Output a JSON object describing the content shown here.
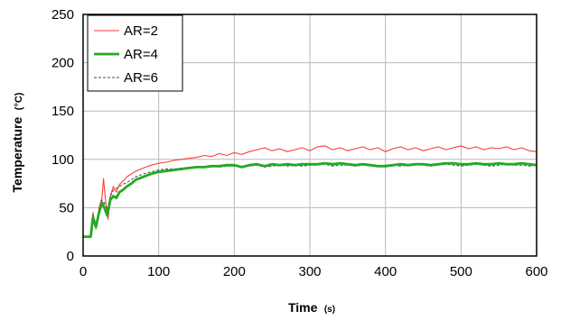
{
  "chart_data": {
    "type": "line",
    "xlabel": "Time",
    "xlabel_unit": "(s)",
    "ylabel": "Temperature",
    "ylabel_unit": "(°C)",
    "xlim": [
      0,
      600
    ],
    "ylim": [
      0,
      250
    ],
    "x_ticks": [
      0,
      100,
      200,
      300,
      400,
      500,
      600
    ],
    "y_ticks": [
      0,
      50,
      100,
      150,
      200,
      250
    ],
    "grid": true,
    "legend_position": "top-left",
    "series": [
      {
        "name": "AR=2",
        "color": "#ff3b3b",
        "style": "solid-thin",
        "points": [
          [
            0,
            20
          ],
          [
            10,
            20
          ],
          [
            13,
            45
          ],
          [
            17,
            28
          ],
          [
            21,
            50
          ],
          [
            25,
            60
          ],
          [
            27,
            80
          ],
          [
            30,
            55
          ],
          [
            33,
            38
          ],
          [
            36,
            62
          ],
          [
            40,
            72
          ],
          [
            44,
            66
          ],
          [
            48,
            74
          ],
          [
            52,
            77
          ],
          [
            58,
            82
          ],
          [
            64,
            85
          ],
          [
            70,
            88
          ],
          [
            80,
            91
          ],
          [
            90,
            94
          ],
          [
            100,
            96
          ],
          [
            110,
            97
          ],
          [
            120,
            99
          ],
          [
            130,
            100
          ],
          [
            140,
            101
          ],
          [
            150,
            102
          ],
          [
            160,
            104
          ],
          [
            170,
            103
          ],
          [
            180,
            106
          ],
          [
            190,
            104
          ],
          [
            200,
            107
          ],
          [
            210,
            105
          ],
          [
            220,
            108
          ],
          [
            230,
            110
          ],
          [
            240,
            112
          ],
          [
            250,
            109
          ],
          [
            260,
            111
          ],
          [
            270,
            108
          ],
          [
            280,
            110
          ],
          [
            290,
            112
          ],
          [
            300,
            109
          ],
          [
            310,
            113
          ],
          [
            320,
            114
          ],
          [
            330,
            110
          ],
          [
            340,
            112
          ],
          [
            350,
            109
          ],
          [
            360,
            111
          ],
          [
            370,
            113
          ],
          [
            380,
            110
          ],
          [
            390,
            112
          ],
          [
            400,
            108
          ],
          [
            410,
            111
          ],
          [
            420,
            113
          ],
          [
            430,
            110
          ],
          [
            440,
            112
          ],
          [
            450,
            109
          ],
          [
            460,
            111
          ],
          [
            470,
            113
          ],
          [
            480,
            110
          ],
          [
            490,
            112
          ],
          [
            500,
            114
          ],
          [
            510,
            111
          ],
          [
            520,
            113
          ],
          [
            530,
            110
          ],
          [
            540,
            112
          ],
          [
            550,
            111
          ],
          [
            560,
            113
          ],
          [
            570,
            110
          ],
          [
            580,
            112
          ],
          [
            590,
            109
          ],
          [
            600,
            108
          ]
        ]
      },
      {
        "name": "AR=4",
        "color": "#22aa22",
        "style": "solid-thick",
        "points": [
          [
            0,
            20
          ],
          [
            10,
            20
          ],
          [
            13,
            40
          ],
          [
            17,
            30
          ],
          [
            21,
            45
          ],
          [
            25,
            55
          ],
          [
            28,
            50
          ],
          [
            32,
            42
          ],
          [
            36,
            58
          ],
          [
            40,
            62
          ],
          [
            44,
            60
          ],
          [
            48,
            66
          ],
          [
            52,
            68
          ],
          [
            58,
            72
          ],
          [
            64,
            75
          ],
          [
            70,
            79
          ],
          [
            80,
            82
          ],
          [
            90,
            85
          ],
          [
            100,
            87
          ],
          [
            110,
            88
          ],
          [
            120,
            89
          ],
          [
            130,
            90
          ],
          [
            140,
            91
          ],
          [
            150,
            92
          ],
          [
            160,
            92
          ],
          [
            170,
            93
          ],
          [
            180,
            93
          ],
          [
            190,
            94
          ],
          [
            200,
            94
          ],
          [
            210,
            92
          ],
          [
            220,
            94
          ],
          [
            230,
            95
          ],
          [
            240,
            93
          ],
          [
            250,
            95
          ],
          [
            260,
            94
          ],
          [
            270,
            95
          ],
          [
            280,
            94
          ],
          [
            290,
            95
          ],
          [
            300,
            95
          ],
          [
            310,
            95
          ],
          [
            320,
            96
          ],
          [
            330,
            95
          ],
          [
            340,
            96
          ],
          [
            350,
            95
          ],
          [
            360,
            94
          ],
          [
            370,
            95
          ],
          [
            380,
            94
          ],
          [
            390,
            93
          ],
          [
            400,
            93
          ],
          [
            410,
            94
          ],
          [
            420,
            95
          ],
          [
            430,
            94
          ],
          [
            440,
            95
          ],
          [
            450,
            95
          ],
          [
            460,
            94
          ],
          [
            470,
            95
          ],
          [
            480,
            96
          ],
          [
            490,
            96
          ],
          [
            500,
            95
          ],
          [
            510,
            95
          ],
          [
            520,
            96
          ],
          [
            530,
            95
          ],
          [
            540,
            95
          ],
          [
            550,
            96
          ],
          [
            560,
            95
          ],
          [
            570,
            95
          ],
          [
            580,
            96
          ],
          [
            590,
            95
          ],
          [
            600,
            94
          ]
        ]
      },
      {
        "name": "AR=6",
        "color": "#444444",
        "style": "dashed",
        "points": [
          [
            0,
            20
          ],
          [
            10,
            20
          ],
          [
            13,
            42
          ],
          [
            17,
            32
          ],
          [
            21,
            48
          ],
          [
            25,
            58
          ],
          [
            28,
            55
          ],
          [
            32,
            48
          ],
          [
            36,
            62
          ],
          [
            40,
            68
          ],
          [
            44,
            70
          ],
          [
            48,
            72
          ],
          [
            52,
            74
          ],
          [
            58,
            76
          ],
          [
            64,
            79
          ],
          [
            70,
            82
          ],
          [
            80,
            85
          ],
          [
            90,
            87
          ],
          [
            100,
            89
          ],
          [
            110,
            90
          ],
          [
            120,
            90
          ],
          [
            130,
            91
          ],
          [
            140,
            91
          ],
          [
            150,
            92
          ],
          [
            160,
            92
          ],
          [
            170,
            93
          ],
          [
            180,
            92
          ],
          [
            190,
            93
          ],
          [
            200,
            93
          ],
          [
            210,
            92
          ],
          [
            220,
            93
          ],
          [
            230,
            94
          ],
          [
            240,
            92
          ],
          [
            250,
            93
          ],
          [
            260,
            94
          ],
          [
            270,
            93
          ],
          [
            280,
            94
          ],
          [
            290,
            93
          ],
          [
            300,
            94
          ],
          [
            310,
            94
          ],
          [
            320,
            95
          ],
          [
            330,
            93
          ],
          [
            340,
            94
          ],
          [
            350,
            94
          ],
          [
            360,
            93
          ],
          [
            370,
            94
          ],
          [
            380,
            95
          ],
          [
            390,
            93
          ],
          [
            400,
            94
          ],
          [
            410,
            94
          ],
          [
            420,
            93
          ],
          [
            430,
            94
          ],
          [
            440,
            95
          ],
          [
            450,
            94
          ],
          [
            460,
            93
          ],
          [
            470,
            94
          ],
          [
            480,
            95
          ],
          [
            490,
            94
          ],
          [
            500,
            93
          ],
          [
            510,
            94
          ],
          [
            520,
            95
          ],
          [
            530,
            94
          ],
          [
            540,
            93
          ],
          [
            550,
            94
          ],
          [
            560,
            95
          ],
          [
            570,
            94
          ],
          [
            580,
            94
          ],
          [
            590,
            93
          ],
          [
            600,
            94
          ]
        ]
      }
    ]
  }
}
